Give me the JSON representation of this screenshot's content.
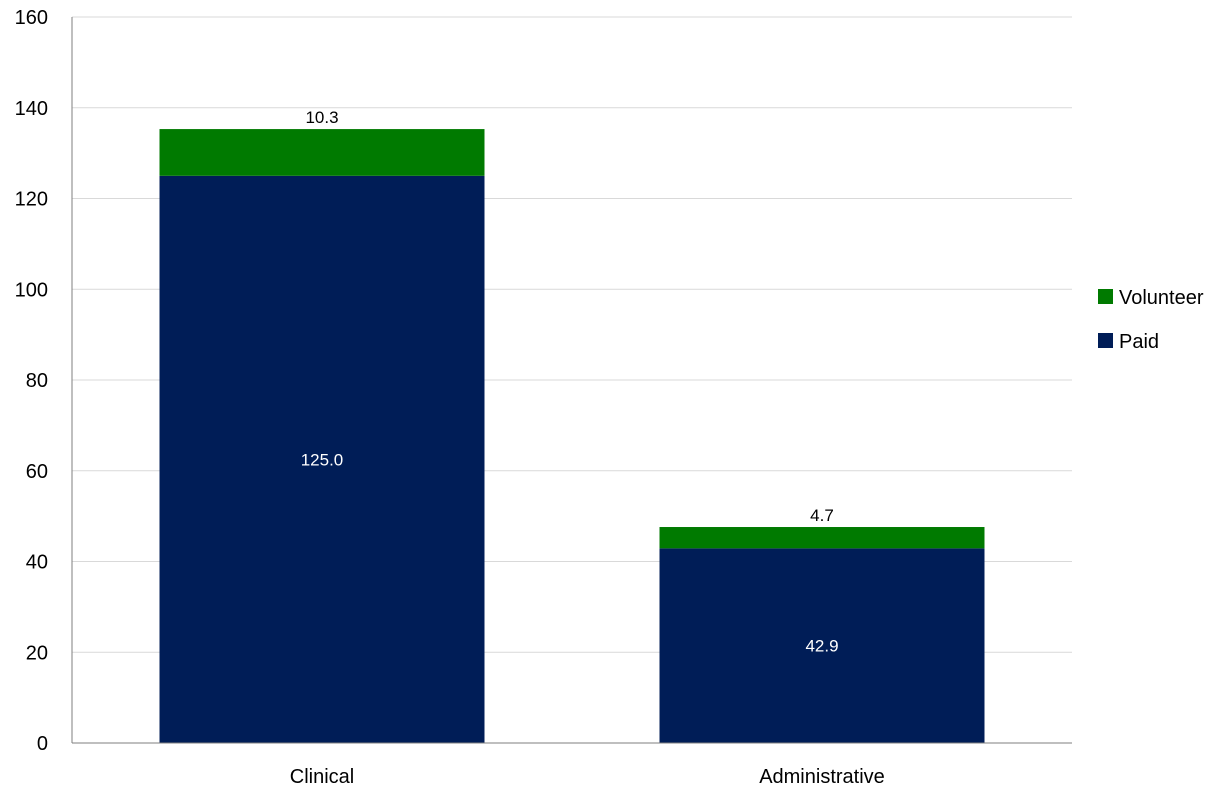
{
  "chart_data": {
    "type": "bar",
    "stacked": true,
    "title": "",
    "xlabel": "",
    "ylabel": "",
    "ylim": [
      0,
      160
    ],
    "yticks": [
      0,
      20,
      40,
      60,
      80,
      100,
      120,
      140,
      160
    ],
    "grid": true,
    "legend_position": "right",
    "categories": [
      "Clinical",
      "Administrative"
    ],
    "series": [
      {
        "name": "Paid",
        "values": [
          125.0,
          42.9
        ],
        "labels": [
          "125.0",
          "42.9"
        ],
        "color": "#001D57",
        "label_color": "#FFFFFF"
      },
      {
        "name": "Volunteer",
        "values": [
          10.3,
          4.7
        ],
        "labels": [
          "10.3",
          "4.7"
        ],
        "color": "#007A00",
        "label_color": "#000000"
      }
    ],
    "legend_order": [
      "Volunteer",
      "Paid"
    ],
    "gridline_color": "#D9D9D9",
    "axis_color": "#7F7F7F"
  }
}
